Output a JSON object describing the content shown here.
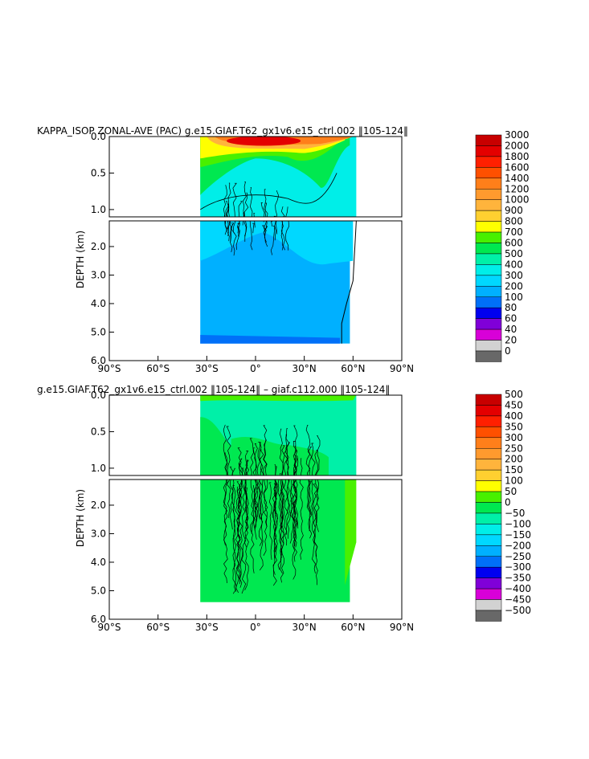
{
  "panels": [
    {
      "title": "KAPPA_ISOP ZONAL-AVE (PAC) g.e15.GIAF.T62_gx1v6.e15_ctrl.002 ‖105-124‖",
      "ylabel": "DEPTH (km)",
      "colorbar_labels": [
        "3000",
        "2000",
        "1800",
        "1600",
        "1400",
        "1200",
        "1000",
        "900",
        "800",
        "700",
        "600",
        "500",
        "400",
        "300",
        "200",
        "100",
        "80",
        "60",
        "40",
        "20",
        "0"
      ]
    },
    {
      "title": "g.e15.GIAF.T62_gx1v6.e15_ctrl.002 ‖105-124‖ – giaf.c112.000 ‖105-124‖",
      "ylabel": "DEPTH (km)",
      "colorbar_labels": [
        "500",
        "450",
        "400",
        "350",
        "300",
        "250",
        "200",
        "150",
        "100",
        "50",
        "0",
        "−50",
        "−100",
        "−150",
        "−200",
        "−250",
        "−300",
        "−350",
        "−400",
        "−450",
        "−500"
      ]
    }
  ],
  "chart_data": [
    {
      "type": "heatmap",
      "title": "KAPPA_ISOP ZONAL-AVE (PAC) g.e15.GIAF.T62_gx1v6.e15_ctrl.002 ‖105-124‖",
      "ylabel": "DEPTH (km)",
      "xlim": [
        -90,
        90
      ],
      "x_ticks": [
        "90°S",
        "60°S",
        "30°S",
        "0°",
        "30°N",
        "60°N",
        "90°N"
      ],
      "y_ticks_upper": [
        "0.0",
        "0.5",
        "1.0"
      ],
      "y_ticks_lower": [
        "2.0",
        "3.0",
        "4.0",
        "5.0",
        "6.0"
      ],
      "data_extent": {
        "lat": [
          -34,
          64
        ],
        "depth_km": [
          0,
          5.4
        ]
      },
      "colorbar_levels": [
        3000,
        2000,
        1800,
        1600,
        1400,
        1200,
        1000,
        900,
        800,
        700,
        600,
        500,
        400,
        300,
        200,
        100,
        80,
        60,
        40,
        20,
        0
      ],
      "colorbar_colors": [
        "#c80000",
        "#e40000",
        "#ff2000",
        "#ff5000",
        "#ff7f1a",
        "#ff9a2e",
        "#ffb43c",
        "#ffd030",
        "#ffff00",
        "#48f000",
        "#00e850",
        "#00f0a8",
        "#00eee8",
        "#00d8ff",
        "#00b0ff",
        "#0070f8",
        "#0000f0",
        "#8000d8",
        "#d800d8",
        "#d2d2d2",
        "#686868"
      ]
    },
    {
      "type": "heatmap",
      "title": "g.e15.GIAF.T62_gx1v6.e15_ctrl.002 ‖105-124‖ – giaf.c112.000 ‖105-124‖",
      "ylabel": "DEPTH (km)",
      "xlim": [
        -90,
        90
      ],
      "x_ticks": [
        "90°S",
        "60°S",
        "30°S",
        "0°",
        "30°N",
        "60°N",
        "90°N"
      ],
      "y_ticks_upper": [
        "0.0",
        "0.5",
        "1.0"
      ],
      "y_ticks_lower": [
        "2.0",
        "3.0",
        "4.0",
        "5.0",
        "6.0"
      ],
      "data_extent": {
        "lat": [
          -34,
          64
        ],
        "depth_km": [
          0,
          5.4
        ]
      },
      "colorbar_levels": [
        500,
        450,
        400,
        350,
        300,
        250,
        200,
        150,
        100,
        50,
        0,
        -50,
        -100,
        -150,
        -200,
        -250,
        -300,
        -350,
        -400,
        -450,
        -500
      ],
      "colorbar_colors": [
        "#c80000",
        "#e40000",
        "#ff2000",
        "#ff5000",
        "#ff7f1a",
        "#ff9a2e",
        "#ffb43c",
        "#ffd030",
        "#ffff00",
        "#48f000",
        "#00e850",
        "#00f0a8",
        "#00eee8",
        "#00d8ff",
        "#00b0ff",
        "#0070f8",
        "#0000f0",
        "#8000d8",
        "#d800d8",
        "#d2d2d2",
        "#686868"
      ]
    }
  ]
}
